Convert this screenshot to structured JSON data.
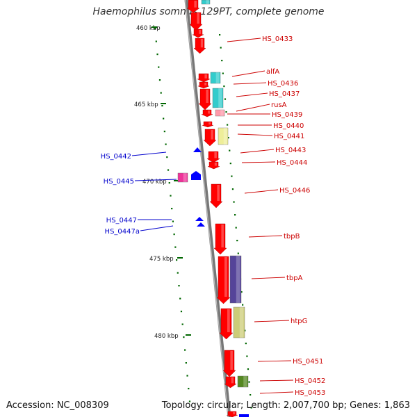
{
  "title": "Haemophilus somnus 129PT, complete genome",
  "accession": "Accession: NC_008309",
  "topology": "Topology: circular; Length: 2,007,700 bp; Genes: 1,863",
  "colors": {
    "backbone": "#888888",
    "forward_gene": "#ff0000",
    "reverse_gene": "#0000ff",
    "gene_label_right": "#cc0000",
    "gene_label_left": "#0000cc",
    "tick": "#006600",
    "cog_cyan": "#33cccc",
    "cog_pink": "#ff99aa",
    "cog_yellow": "#eeee99",
    "cog_magenta": "#ee3399",
    "cog_purple": "#554499",
    "cog_khaki": "#cccc77",
    "cog_olive": "#558822"
  },
  "scale_labels": [
    "460 kbp",
    "465 kbp",
    "470 kbp",
    "475 kbp",
    "480 kbp"
  ],
  "genes_right": [
    "HS_0433",
    "alfA",
    "HS_0436",
    "HS_0437",
    "rusA",
    "HS_0439",
    "HS_0440",
    "HS_0441",
    "HS_0443",
    "HS_0444",
    "HS_0446",
    "tbpB",
    "tbpA",
    "htpG",
    "HS_0451",
    "HS_0452",
    "HS_0453"
  ],
  "genes_left": [
    "HS_0442",
    "HS_0445",
    "HS_0447",
    "HS_0447a"
  ]
}
